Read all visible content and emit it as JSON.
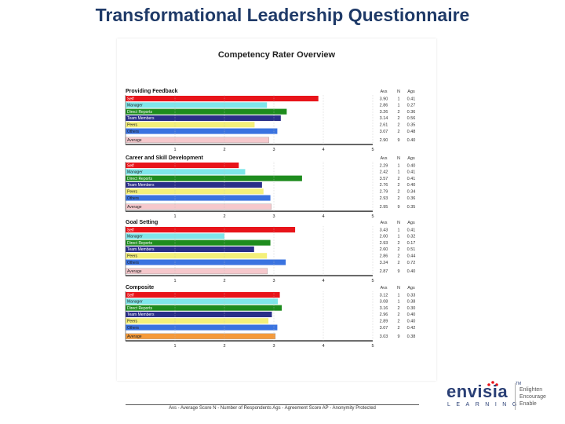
{
  "slide_title": "Transformational Leadership Questionnaire",
  "report_title": "Competency Rater Overview",
  "column_headers": [
    "Avs",
    "N",
    "Ags"
  ],
  "footer_note": "Avs - Average Score   N - Number of Respondents   Ags - Agreement Score   AP - Anonymity Protected",
  "logo": {
    "name": "envisia",
    "tm": "TM",
    "sub": "LEARNING",
    "tagline": [
      "Enlighten",
      "Encourage",
      "Enable"
    ]
  },
  "colors": {
    "title": "#1f3a68",
    "self": "#e8141a",
    "manager": "#7fe6ea",
    "direct_reports": "#1e8c1e",
    "team_members": "#2a2f88",
    "peers": "#f4f07a",
    "others": "#3a73e0",
    "average": "#f6c8cc",
    "composite_average": "#f59a3a"
  },
  "chart_data": [
    {
      "type": "bar",
      "title": "Providing Feedback",
      "xlim": [
        0,
        5
      ],
      "xticks": [
        "1",
        "2",
        "3",
        "4",
        "5"
      ],
      "categories": [
        "Self",
        "Manager",
        "Direct Reports",
        "Team Members",
        "Peers",
        "Others",
        "Average"
      ],
      "values": [
        3.9,
        2.86,
        3.26,
        3.14,
        2.61,
        3.07,
        2.9
      ],
      "avs": [
        "3.90",
        "2.86",
        "3.26",
        "3.14",
        "2.61",
        "3.07",
        "2.90"
      ],
      "n": [
        "1",
        "1",
        "2",
        "2",
        "2",
        "2",
        "9"
      ],
      "ags": [
        "0.41",
        "0.27",
        "0.36",
        "0.56",
        "0.35",
        "0.48",
        "0.40"
      ]
    },
    {
      "type": "bar",
      "title": "Career and Skill Development",
      "xlim": [
        0,
        5
      ],
      "xticks": [
        "1",
        "2",
        "3",
        "4",
        "5"
      ],
      "categories": [
        "Self",
        "Manager",
        "Direct Reports",
        "Team Members",
        "Peers",
        "Others",
        "Average"
      ],
      "values": [
        2.29,
        2.42,
        3.57,
        2.76,
        2.79,
        2.93,
        2.95
      ],
      "avs": [
        "2.29",
        "2.42",
        "3.57",
        "2.76",
        "2.79",
        "2.93",
        "2.95"
      ],
      "n": [
        "1",
        "1",
        "2",
        "2",
        "2",
        "2",
        "9"
      ],
      "ags": [
        "0.40",
        "0.41",
        "0.41",
        "0.40",
        "0.34",
        "0.36",
        "0.35"
      ]
    },
    {
      "type": "bar",
      "title": "Goal Setting",
      "xlim": [
        0,
        5
      ],
      "xticks": [
        "1",
        "2",
        "3",
        "4",
        "5"
      ],
      "categories": [
        "Self",
        "Manager",
        "Direct Reports",
        "Team Members",
        "Peers",
        "Others",
        "Average"
      ],
      "values": [
        3.43,
        2.0,
        2.93,
        2.6,
        2.86,
        3.24,
        2.87
      ],
      "avs": [
        "3.43",
        "2.00",
        "2.93",
        "2.60",
        "2.86",
        "3.24",
        "2.87"
      ],
      "n": [
        "1",
        "1",
        "2",
        "2",
        "2",
        "2",
        "9"
      ],
      "ags": [
        "0.41",
        "0.32",
        "0.17",
        "0.51",
        "0.44",
        "0.72",
        "0.40"
      ]
    },
    {
      "type": "bar",
      "title": "Composite",
      "xlim": [
        0,
        5
      ],
      "xticks": [
        "1",
        "2",
        "3",
        "4",
        "5"
      ],
      "categories": [
        "Self",
        "Manager",
        "Direct Reports",
        "Team Members",
        "Peers",
        "Others",
        "Average"
      ],
      "values": [
        3.12,
        3.08,
        3.16,
        2.96,
        2.89,
        3.07,
        3.03
      ],
      "avs": [
        "3.12",
        "3.08",
        "3.16",
        "2.96",
        "2.89",
        "3.07",
        "3.03"
      ],
      "n": [
        "1",
        "1",
        "2",
        "2",
        "2",
        "2",
        "9"
      ],
      "ags": [
        "0.33",
        "0.38",
        "0.30",
        "0.40",
        "0.40",
        "0.42",
        "0.38"
      ]
    }
  ]
}
